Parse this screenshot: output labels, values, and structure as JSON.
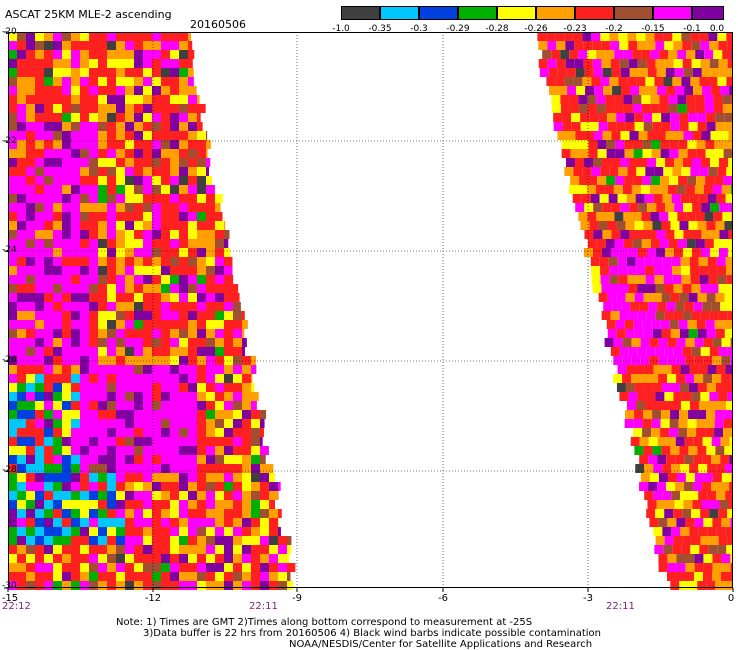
{
  "header": {
    "title": "ASCAT 25KM MLE-2 ascending",
    "date": "20160506"
  },
  "colorbar": {
    "colors": [
      "#404040",
      "#00c8ff",
      "#0040e0",
      "#00b000",
      "#ffff00",
      "#ffa000",
      "#ff2020",
      "#a05030",
      "#ff00ff",
      "#8000a0"
    ],
    "labels": [
      "-1.0",
      "-0.35",
      "-0.3",
      "-0.29",
      "-0.28",
      "-0.26",
      "-0.23",
      "-0.2",
      "-0.15",
      "-0.1",
      "0.0"
    ]
  },
  "y_axis": {
    "ticks": [
      "-20",
      "-22",
      "-24",
      "-26",
      "-28",
      "-30"
    ]
  },
  "x_axis": {
    "ticks": [
      "-15",
      "-12",
      "-9",
      "-6",
      "-3",
      "0"
    ]
  },
  "time_labels": [
    "22:12",
    "22:11",
    "22:11"
  ],
  "notes": {
    "line1": "Note: 1) Times are GMT 2)Times along bottom correspond to measurement at -25S",
    "line2": "3)Data buffer is 22 hrs from 20160506 4) Black wind barbs indicate possible contamination",
    "line3": "NOAA/NESDIS/Center for Satellite Applications and Research"
  }
}
